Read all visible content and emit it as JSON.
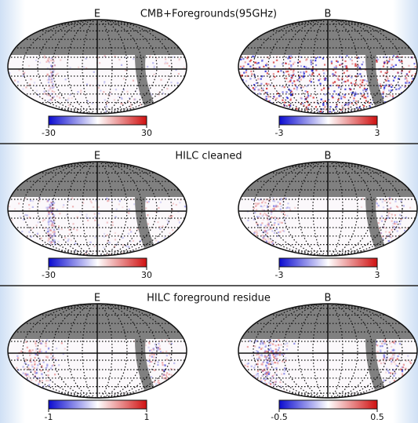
{
  "rows": [
    {
      "title": "CMB+Foregrounds(95GHz)",
      "panels": [
        {
          "label": "E",
          "range": [
            -30,
            30
          ],
          "ticks": [
            -30,
            30
          ]
        },
        {
          "label": "B",
          "range": [
            -3,
            3
          ],
          "ticks": [
            -3,
            3
          ]
        }
      ]
    },
    {
      "title": "HILC cleaned",
      "panels": [
        {
          "label": "E",
          "range": [
            -30,
            30
          ],
          "ticks": [
            -30,
            30
          ]
        },
        {
          "label": "B",
          "range": [
            -3,
            3
          ],
          "ticks": [
            -3,
            3
          ]
        }
      ]
    },
    {
      "title": "HILC foreground residue",
      "panels": [
        {
          "label": "E",
          "range": [
            -1,
            1
          ],
          "ticks": [
            -1,
            1
          ]
        },
        {
          "label": "B",
          "range": [
            -0.5,
            0.5
          ],
          "ticks": [
            -0.5,
            0.5
          ]
        }
      ]
    }
  ]
}
